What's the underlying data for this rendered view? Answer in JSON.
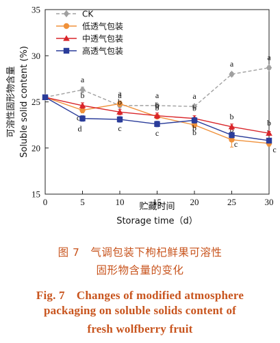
{
  "chart_data": {
    "type": "line",
    "x": [
      0,
      5,
      10,
      15,
      20,
      25,
      30
    ],
    "xlim": [
      0,
      30
    ],
    "ylim": [
      15,
      35
    ],
    "xticks": [
      0,
      5,
      10,
      15,
      20,
      25,
      30
    ],
    "yticks": [
      15,
      20,
      25,
      30,
      35
    ],
    "xlabel_cn": "贮藏时间",
    "xlabel_en": "Storage time（d）",
    "ylabel_cn": "可溶性固形物含量",
    "ylabel_en": "Soluble solid content (%)",
    "legend_position": "top-left",
    "grid": false,
    "series": [
      {
        "name": "CK",
        "color": "#a0a0a0",
        "marker": "diamond",
        "dashed": true,
        "values": [
          25.5,
          26.3,
          24.6,
          24.6,
          24.5,
          28.0,
          28.7
        ],
        "errors": [
          0,
          0.3,
          0.2,
          0.2,
          0.2,
          0.2,
          0.2
        ],
        "labels": [
          "",
          "a",
          "a",
          "a",
          "a",
          "a",
          "a"
        ]
      },
      {
        "name": "低透气包装",
        "color": "#f0913a",
        "marker": "circle",
        "dashed": false,
        "values": [
          25.5,
          24.1,
          24.8,
          23.4,
          22.5,
          20.9,
          20.5
        ],
        "errors": [
          0,
          0.3,
          0.3,
          0.2,
          0.3,
          0.8,
          0.3
        ],
        "labels": [
          "",
          "c",
          "a",
          "b",
          "b",
          "b",
          "b"
        ]
      },
      {
        "name": "中透气包装",
        "color": "#d9252a",
        "marker": "triangle",
        "dashed": false,
        "values": [
          25.5,
          24.6,
          23.9,
          23.5,
          23.2,
          22.3,
          21.6
        ],
        "errors": [
          0,
          0.3,
          0.3,
          0.3,
          0.3,
          0.3,
          0.2
        ],
        "labels": [
          "",
          "b",
          "b",
          "b",
          "b",
          "b",
          "b"
        ]
      },
      {
        "name": "高透气包装",
        "color": "#2a3c9a",
        "marker": "square",
        "dashed": false,
        "values": [
          25.5,
          23.2,
          23.1,
          22.6,
          23.0,
          21.4,
          20.8
        ],
        "errors": [
          0,
          0.3,
          0.3,
          0.3,
          0.3,
          0.3,
          0.2
        ],
        "labels": [
          "",
          "d",
          "c",
          "c",
          "b",
          "c",
          "c"
        ]
      }
    ]
  },
  "caption": {
    "cn_line1": "图 7　气调包装下枸杞鲜果可溶性",
    "cn_line2": "固形物含量的变化",
    "en_line1": "Fig. 7　Changes of modified atmosphere",
    "en_line2": "packaging on soluble solids content of",
    "en_line3": "fresh wolfberry fruit"
  }
}
